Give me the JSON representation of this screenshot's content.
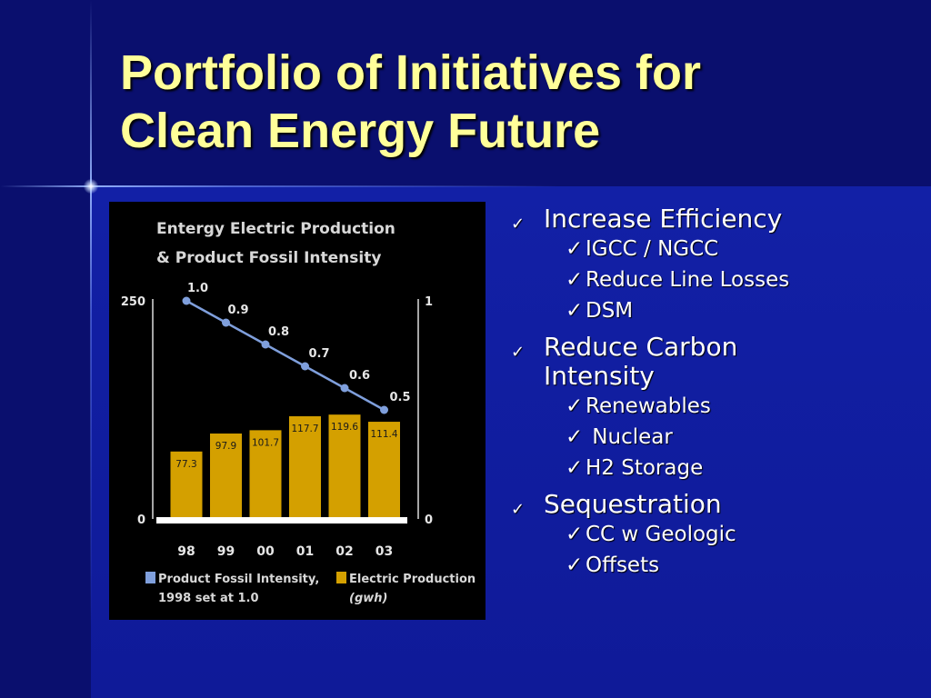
{
  "slide": {
    "title_line1": "Portfolio of Initiatives for",
    "title_line2": "Clean Energy Future",
    "check_glyph": "✓"
  },
  "bullets": [
    {
      "label": "Increase Efficiency",
      "subs": [
        "IGCC / NGCC",
        "Reduce Line Losses",
        "DSM"
      ]
    },
    {
      "label": "Reduce Carbon Intensity",
      "label_lines": [
        "Reduce Carbon",
        "Intensity"
      ],
      "subs": [
        "Renewables",
        " Nuclear",
        "H2 Storage"
      ]
    },
    {
      "label": "Sequestration",
      "subs": [
        "CC w Geologic",
        "Offsets"
      ]
    }
  ],
  "chart_data": {
    "type": "bar",
    "title_lines": [
      "Entergy Electric Production",
      "& Product Fossil Intensity"
    ],
    "categories": [
      "98",
      "99",
      "00",
      "01",
      "02",
      "03"
    ],
    "left_axis": {
      "ticks": [
        "250",
        "0"
      ],
      "min": 0,
      "max": 250
    },
    "right_axis": {
      "ticks": [
        "1",
        "0"
      ],
      "min": 0,
      "max": 1
    },
    "series": [
      {
        "name": "Electric Production (gwh)",
        "type": "bar",
        "axis": "left",
        "values": [
          77.3,
          97.9,
          101.7,
          117.7,
          119.6,
          111.4
        ],
        "labels": [
          "77.3",
          "97.9",
          "101.7",
          "117.7",
          "119.6",
          "111.4"
        ],
        "color": "#d4a000"
      },
      {
        "name": "Product Fossil Intensity, 1998 set at 1.0",
        "type": "line",
        "axis": "right",
        "values": [
          1.0,
          0.9,
          0.8,
          0.7,
          0.6,
          0.5
        ],
        "labels": [
          "1.0",
          "0.9",
          "0.8",
          "0.7",
          "0.6",
          "0.5"
        ],
        "color": "#7f9fdc"
      }
    ],
    "legend": [
      {
        "line1": "Product Fossil Intensity,",
        "line2": "1998 set at 1.0",
        "color": "#7f9fdc"
      },
      {
        "line1": "Electric Production",
        "line2": "(gwh)",
        "color": "#d4a000"
      }
    ],
    "legend_position": "bottom",
    "grid": false
  }
}
